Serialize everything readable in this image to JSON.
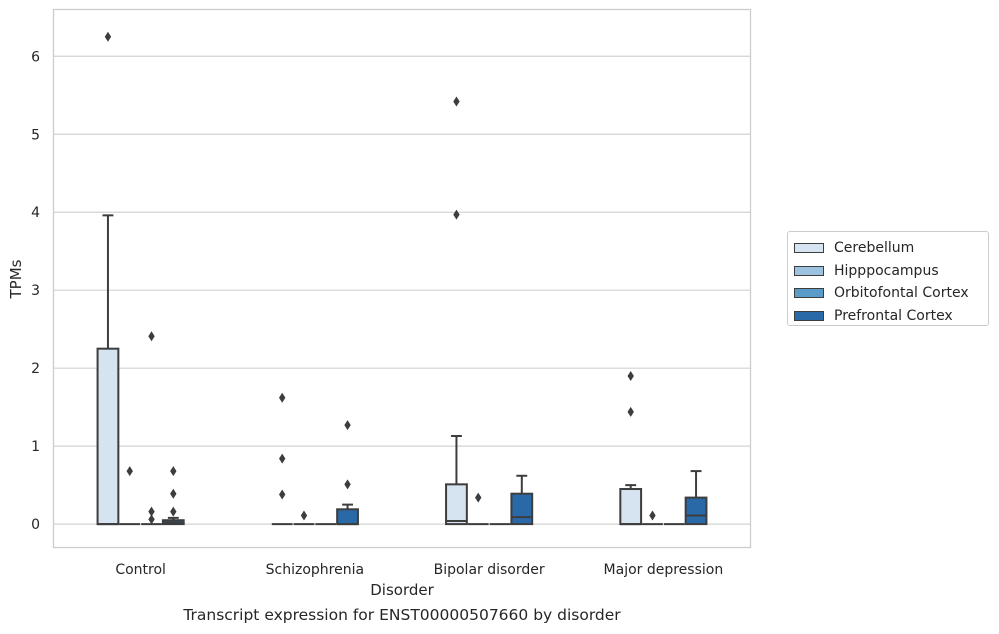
{
  "caption": "Transcript expression for ENST00000507660 by disorder",
  "chart_data": {
    "type": "box",
    "xlabel": "Disorder",
    "ylabel": "TPMs",
    "ylim": [
      -0.3,
      6.6
    ],
    "yticks": [
      0,
      1,
      2,
      3,
      4,
      5,
      6
    ],
    "grid": "horizontal",
    "legend_position": "right",
    "categories": [
      "Control",
      "Schizophrenia",
      "Bipolar disorder",
      "Major depression"
    ],
    "series": [
      {
        "name": "Cerebellum",
        "color": "#d6e3f0",
        "boxes": [
          {
            "q1": 0,
            "median": 0,
            "q3": 2.25,
            "whisker_low": 0,
            "whisker_high": 3.96,
            "outliers": [
              6.25
            ]
          },
          {
            "q1": 0,
            "median": 0,
            "q3": 0,
            "whisker_low": 0,
            "whisker_high": 0,
            "outliers": [
              1.62,
              0.84,
              0.38
            ]
          },
          {
            "q1": 0,
            "median": 0.04,
            "q3": 0.51,
            "whisker_low": 0,
            "whisker_high": 1.13,
            "outliers": [
              5.42,
              3.97
            ]
          },
          {
            "q1": 0,
            "median": 0,
            "q3": 0.45,
            "whisker_low": 0,
            "whisker_high": 0.5,
            "outliers": [
              1.9,
              1.44
            ]
          }
        ]
      },
      {
        "name": "Hipppocampus",
        "color": "#9bc2de",
        "boxes": [
          {
            "q1": 0,
            "median": 0,
            "q3": 0,
            "whisker_low": 0,
            "whisker_high": 0,
            "outliers": [
              0.68
            ]
          },
          {
            "q1": 0,
            "median": 0,
            "q3": 0,
            "whisker_low": 0,
            "whisker_high": 0,
            "outliers": [
              0.11
            ]
          },
          {
            "q1": 0,
            "median": 0,
            "q3": 0,
            "whisker_low": 0,
            "whisker_high": 0,
            "outliers": [
              0.34
            ]
          },
          {
            "q1": 0,
            "median": 0,
            "q3": 0,
            "whisker_low": 0,
            "whisker_high": 0,
            "outliers": [
              0.11
            ]
          }
        ]
      },
      {
        "name": "Orbitofontal Cortex",
        "color": "#5b9bc8",
        "boxes": [
          {
            "q1": 0,
            "median": 0,
            "q3": 0,
            "whisker_low": 0,
            "whisker_high": 0,
            "outliers": [
              2.41,
              0.16,
              0.06
            ]
          },
          {
            "q1": 0,
            "median": 0,
            "q3": 0,
            "whisker_low": 0,
            "whisker_high": 0,
            "outliers": []
          },
          {
            "q1": 0,
            "median": 0,
            "q3": 0,
            "whisker_low": 0,
            "whisker_high": 0,
            "outliers": []
          },
          {
            "q1": 0,
            "median": 0,
            "q3": 0,
            "whisker_low": 0,
            "whisker_high": 0,
            "outliers": []
          }
        ]
      },
      {
        "name": "Prefrontal Cortex",
        "color": "#2a69a8",
        "boxes": [
          {
            "q1": 0,
            "median": 0.02,
            "q3": 0.05,
            "whisker_low": 0,
            "whisker_high": 0.08,
            "outliers": [
              0.68,
              0.39,
              0.16
            ]
          },
          {
            "q1": 0,
            "median": 0,
            "q3": 0.19,
            "whisker_low": 0,
            "whisker_high": 0.25,
            "outliers": [
              1.27,
              0.51
            ]
          },
          {
            "q1": 0,
            "median": 0.09,
            "q3": 0.39,
            "whisker_low": 0,
            "whisker_high": 0.62,
            "outliers": []
          },
          {
            "q1": 0,
            "median": 0.11,
            "q3": 0.34,
            "whisker_low": 0,
            "whisker_high": 0.68,
            "outliers": []
          }
        ]
      }
    ]
  }
}
